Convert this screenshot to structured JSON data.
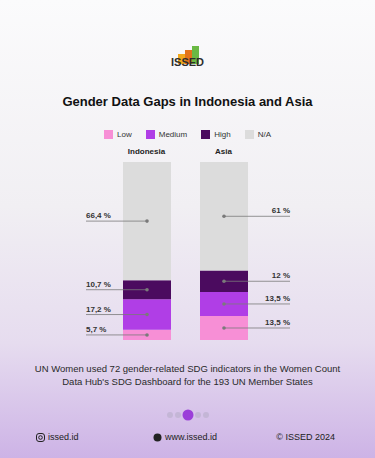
{
  "header": {
    "logo": "ISSED"
  },
  "chart_data": {
    "type": "bar",
    "title": "Gender Data Gaps in Indonesia and Asia",
    "categories": [
      "Indonesia",
      "Asia"
    ],
    "stacked": true,
    "data_labels": true,
    "tick_labels": "x",
    "legend": "top",
    "ylim": [
      0,
      100
    ],
    "series": [
      {
        "name": "Low",
        "color": "#f78fd6",
        "values": [
          5.7,
          13.5
        ],
        "value_labels": [
          "5,7 %",
          "13,5 %"
        ]
      },
      {
        "name": "Medium",
        "color": "#b03ee6",
        "values": [
          17.2,
          13.5
        ],
        "value_labels": [
          "17,2 %",
          "13,5 %"
        ]
      },
      {
        "name": "High",
        "color": "#4b0b5f",
        "values": [
          10.7,
          12
        ],
        "value_labels": [
          "10,7 %",
          "12 %"
        ]
      },
      {
        "name": "N/A",
        "color": "#dcdcdc",
        "values": [
          66.4,
          61
        ],
        "value_labels": [
          "66,4 %",
          "61 %"
        ]
      }
    ]
  },
  "footnote": "UN Women used 72 gender-related SDG indicators in the Women Count Data Hub's SDG Dashboard for the 193 UN Member States",
  "footer": {
    "instagram": "issed.id",
    "website": "www.issed.id",
    "copyright": "© ISSED 2024"
  }
}
